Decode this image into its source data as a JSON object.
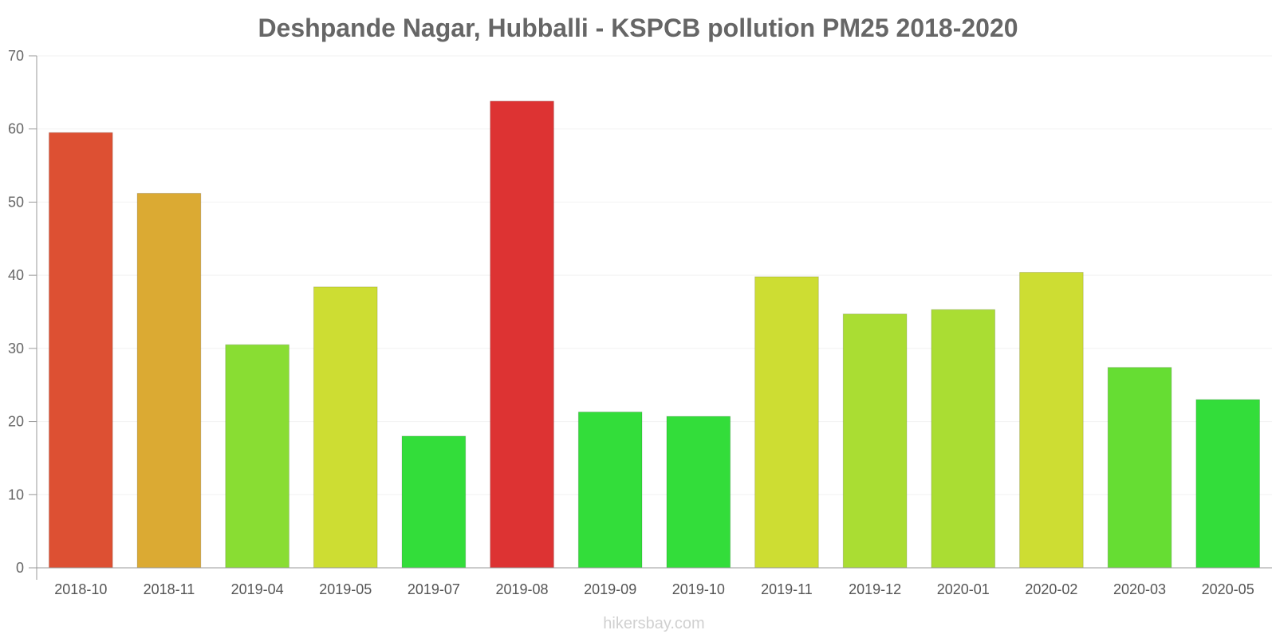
{
  "chart_data": {
    "type": "bar",
    "title": "Deshpande Nagar, Hubballi - KSPCB pollution PM25 2018-2020",
    "xlabel": "",
    "ylabel": "",
    "ylim": [
      0,
      70
    ],
    "yticks": [
      0,
      10,
      20,
      30,
      40,
      50,
      60,
      70
    ],
    "grid": true,
    "categories": [
      "2018-10",
      "2018-11",
      "2019-04",
      "2019-05",
      "2019-07",
      "2019-08",
      "2019-09",
      "2019-10",
      "2019-11",
      "2019-12",
      "2020-01",
      "2020-02",
      "2020-03",
      "2020-05"
    ],
    "values": [
      59.5,
      51.2,
      30.5,
      38.4,
      18.0,
      63.8,
      21.3,
      20.7,
      39.8,
      34.7,
      35.3,
      40.4,
      27.4,
      23.0
    ],
    "colors": [
      "#dd5033",
      "#dbaa33",
      "#89dd33",
      "#cddd33",
      "#33dd3a",
      "#dd3333",
      "#33dd3a",
      "#33dd3a",
      "#cddd33",
      "#aadd33",
      "#aadd33",
      "#cddd33",
      "#66dd33",
      "#33dd3a"
    ]
  },
  "watermark": "hikersbay.com"
}
